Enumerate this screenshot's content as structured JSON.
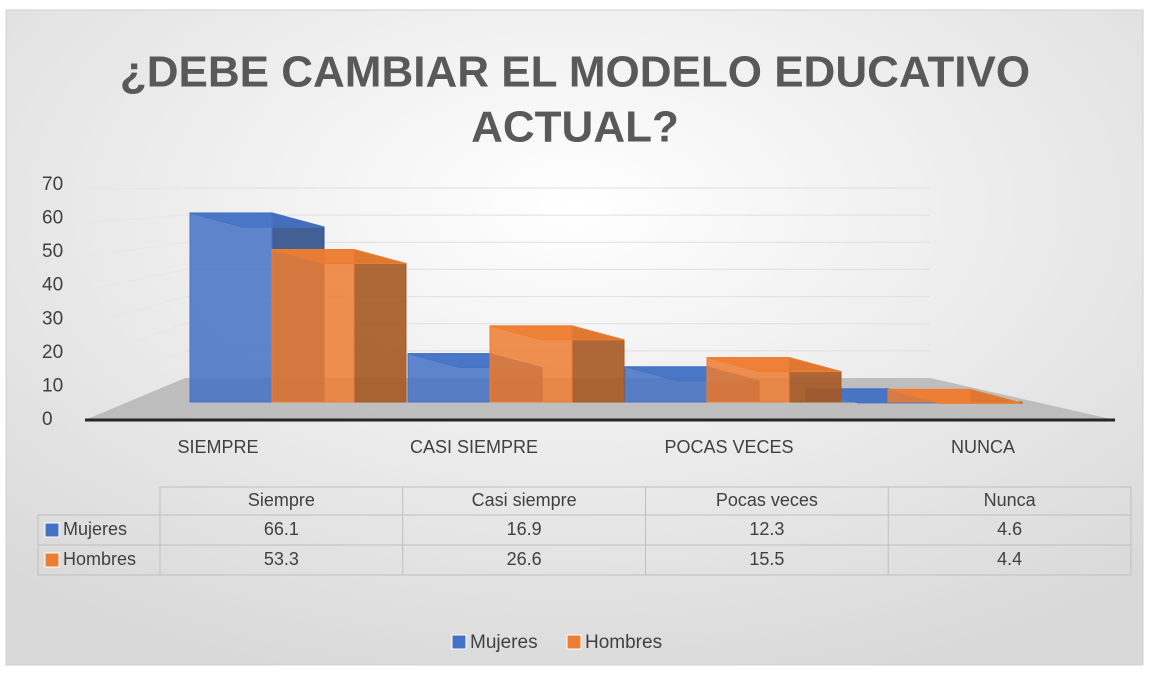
{
  "chart_data": {
    "type": "bar3d",
    "title": "¿DEBE CAMBIAR EL MODELO EDUCATIVO ACTUAL?",
    "categories": [
      "SIEMPRE",
      "CASI SIEMPRE",
      "POCAS VECES",
      "NUNCA"
    ],
    "series": [
      {
        "name": "Mujeres",
        "color": "#4472c4",
        "values": [
          66.1,
          16.9,
          12.3,
          4.6
        ]
      },
      {
        "name": "Hombres",
        "color": "#ed7d31",
        "values": [
          53.3,
          26.6,
          15.5,
          4.4
        ]
      }
    ],
    "ylim": [
      0,
      70
    ],
    "yticks": [
      0,
      10,
      20,
      30,
      40,
      50,
      60,
      70
    ],
    "grid": true,
    "legend": "bottom",
    "table": {
      "columns": [
        "Siempre",
        "Casi siempre",
        "Pocas veces",
        "Nunca"
      ]
    }
  }
}
